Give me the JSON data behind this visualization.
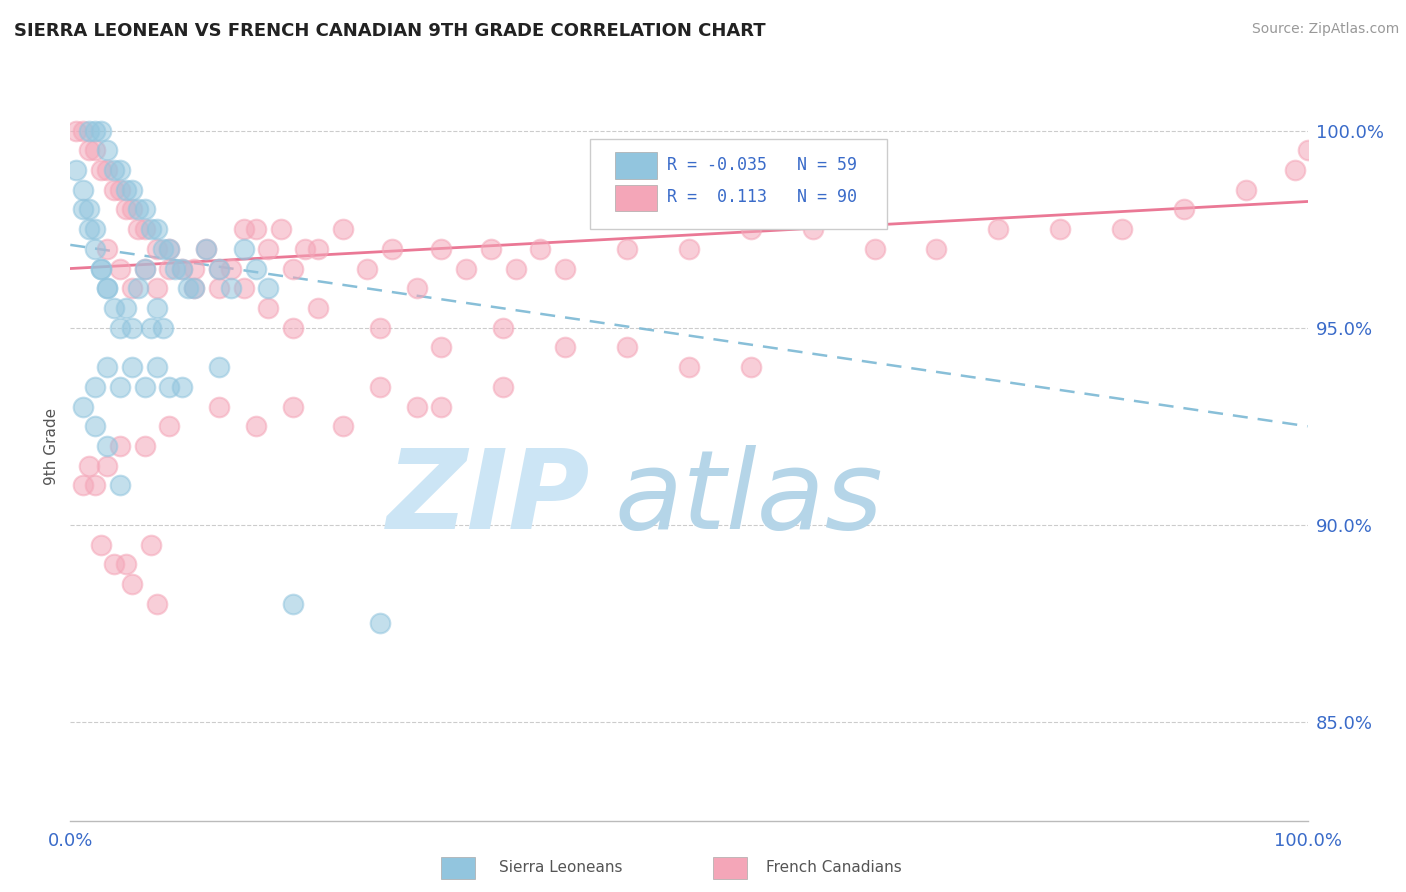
{
  "title": "SIERRA LEONEAN VS FRENCH CANADIAN 9TH GRADE CORRELATION CHART",
  "source_text": "Source: ZipAtlas.com",
  "ylabel": "9th Grade",
  "y_ticks": [
    85.0,
    90.0,
    95.0,
    100.0
  ],
  "x_range": [
    0.0,
    100.0
  ],
  "y_range": [
    82.5,
    101.5
  ],
  "blue_color": "#92c5de",
  "pink_color": "#f4a6b8",
  "blue_line_color": "#92c5de",
  "pink_line_color": "#e8698a",
  "watermark_zip_color": "#cce0f0",
  "watermark_atlas_color": "#b8d5e8",
  "sierra_x": [
    1.5,
    2.0,
    2.5,
    3.0,
    3.5,
    4.0,
    4.5,
    5.0,
    5.5,
    6.0,
    6.5,
    7.0,
    7.5,
    8.0,
    8.5,
    9.0,
    9.5,
    10.0,
    11.0,
    12.0,
    13.0,
    14.0,
    15.0,
    16.0,
    1.0,
    1.5,
    2.0,
    2.5,
    3.0,
    3.5,
    4.0,
    4.5,
    5.0,
    5.5,
    6.0,
    6.5,
    7.0,
    7.5,
    0.5,
    1.0,
    1.5,
    2.0,
    2.5,
    3.0,
    1.0,
    2.0,
    3.0,
    4.0,
    12.0,
    8.0,
    5.0,
    6.0,
    7.0,
    9.0,
    3.0,
    2.0,
    4.0,
    18.0,
    25.0
  ],
  "sierra_y": [
    100.0,
    100.0,
    100.0,
    99.5,
    99.0,
    99.0,
    98.5,
    98.5,
    98.0,
    98.0,
    97.5,
    97.5,
    97.0,
    97.0,
    96.5,
    96.5,
    96.0,
    96.0,
    97.0,
    96.5,
    96.0,
    97.0,
    96.5,
    96.0,
    98.0,
    97.5,
    97.0,
    96.5,
    96.0,
    95.5,
    95.0,
    95.5,
    95.0,
    96.0,
    96.5,
    95.0,
    95.5,
    95.0,
    99.0,
    98.5,
    98.0,
    97.5,
    96.5,
    96.0,
    93.0,
    93.5,
    94.0,
    93.5,
    94.0,
    93.5,
    94.0,
    93.5,
    94.0,
    93.5,
    92.0,
    92.5,
    91.0,
    88.0,
    87.5
  ],
  "french_x": [
    0.5,
    1.0,
    1.5,
    2.0,
    2.5,
    3.0,
    3.5,
    4.0,
    4.5,
    5.0,
    5.5,
    6.0,
    7.0,
    8.0,
    9.0,
    10.0,
    11.0,
    12.0,
    13.0,
    14.0,
    15.0,
    16.0,
    17.0,
    18.0,
    19.0,
    20.0,
    22.0,
    24.0,
    26.0,
    28.0,
    30.0,
    32.0,
    34.0,
    36.0,
    38.0,
    40.0,
    45.0,
    50.0,
    55.0,
    60.0,
    65.0,
    70.0,
    75.0,
    80.0,
    85.0,
    90.0,
    95.0,
    99.0,
    100.0,
    3.0,
    4.0,
    5.0,
    6.0,
    7.0,
    8.0,
    10.0,
    12.0,
    14.0,
    16.0,
    18.0,
    20.0,
    25.0,
    30.0,
    35.0,
    40.0,
    45.0,
    50.0,
    55.0,
    25.0,
    30.0,
    35.0,
    28.0,
    22.0,
    18.0,
    15.0,
    12.0,
    8.0,
    6.0,
    4.0,
    3.0,
    2.0,
    1.5,
    1.0,
    5.0,
    7.0,
    3.5,
    2.5,
    4.5,
    6.5
  ],
  "french_y": [
    100.0,
    100.0,
    99.5,
    99.5,
    99.0,
    99.0,
    98.5,
    98.5,
    98.0,
    98.0,
    97.5,
    97.5,
    97.0,
    97.0,
    96.5,
    96.5,
    97.0,
    96.5,
    96.5,
    97.5,
    97.5,
    97.0,
    97.5,
    96.5,
    97.0,
    97.0,
    97.5,
    96.5,
    97.0,
    96.0,
    97.0,
    96.5,
    97.0,
    96.5,
    97.0,
    96.5,
    97.0,
    97.0,
    97.5,
    97.5,
    97.0,
    97.0,
    97.5,
    97.5,
    97.5,
    98.0,
    98.5,
    99.0,
    99.5,
    97.0,
    96.5,
    96.0,
    96.5,
    96.0,
    96.5,
    96.0,
    96.0,
    96.0,
    95.5,
    95.0,
    95.5,
    95.0,
    94.5,
    95.0,
    94.5,
    94.5,
    94.0,
    94.0,
    93.5,
    93.0,
    93.5,
    93.0,
    92.5,
    93.0,
    92.5,
    93.0,
    92.5,
    92.0,
    92.0,
    91.5,
    91.0,
    91.5,
    91.0,
    88.5,
    88.0,
    89.0,
    89.5,
    89.0,
    89.5
  ],
  "blue_trend_start": 97.1,
  "blue_trend_end": 92.5,
  "pink_trend_start": 96.5,
  "pink_trend_end": 98.2
}
